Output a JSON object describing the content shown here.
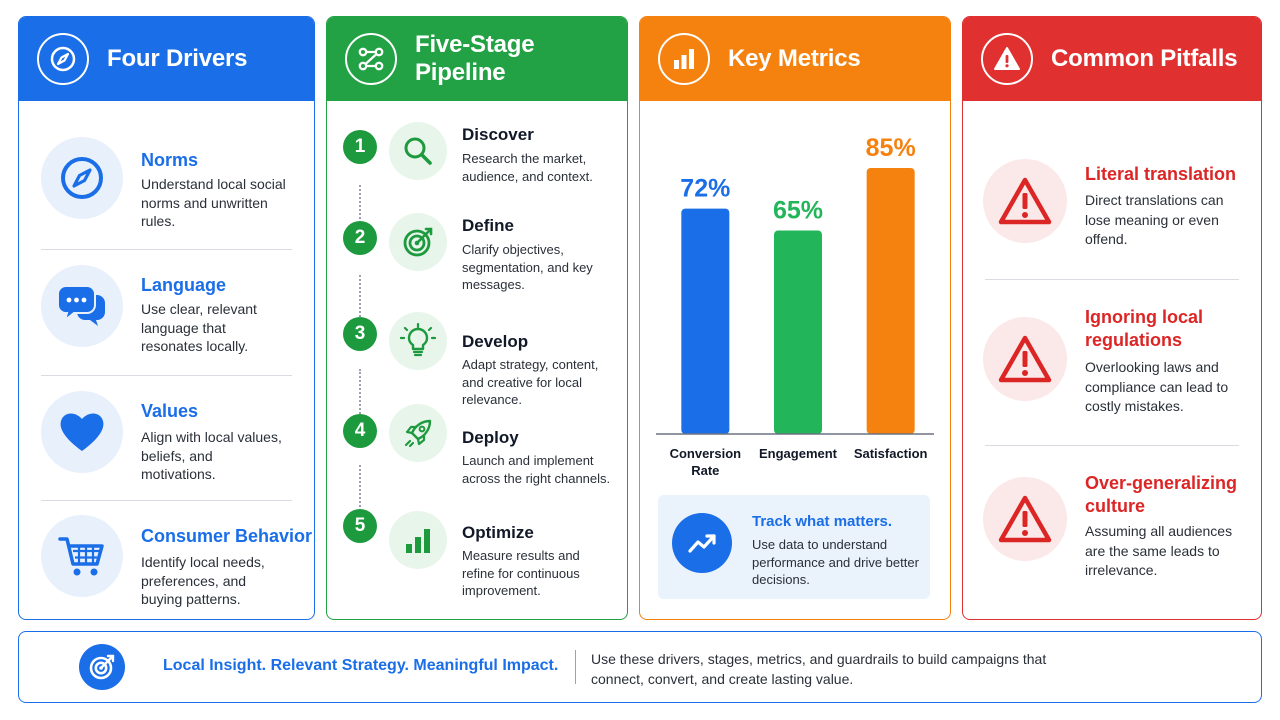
{
  "colors": {
    "blue": "#1a6ee8",
    "green": "#22a244",
    "orange": "#f5810f",
    "red": "#e0302f"
  },
  "drivers": {
    "title": "Four Drivers",
    "header_icon": "compass-icon",
    "items": [
      {
        "title": "Norms",
        "desc": "Understand local social norms and unwritten rules.",
        "icon": "compass-icon"
      },
      {
        "title": "Language",
        "desc": "Use clear, relevant language that resonates locally.",
        "icon": "chat-bubbles-icon"
      },
      {
        "title": "Values",
        "desc": "Align with local values, beliefs, and motivations.",
        "icon": "heart-icon"
      },
      {
        "title": "Consumer Behavior",
        "desc": "Identify local needs, preferences, and buying patterns.",
        "icon": "shopping-cart-icon"
      }
    ]
  },
  "pipeline": {
    "title": "Five-Stage Pipeline",
    "header_icon": "pipeline-flow-icon",
    "stages": [
      {
        "num": "1",
        "title": "Discover",
        "desc": "Research the market, audience, and context.",
        "icon": "magnifier-icon"
      },
      {
        "num": "2",
        "title": "Define",
        "desc": "Clarify objectives, segmentation, and key messages.",
        "icon": "target-icon"
      },
      {
        "num": "3",
        "title": "Develop",
        "desc": "Adapt strategy, content, and creative for local relevance.",
        "icon": "lightbulb-icon"
      },
      {
        "num": "4",
        "title": "Deploy",
        "desc": "Launch and implement across the right channels.",
        "icon": "rocket-icon"
      },
      {
        "num": "5",
        "title": "Optimize",
        "desc": "Measure results and refine for continuous improvement.",
        "icon": "bar-chart-icon"
      }
    ]
  },
  "metrics": {
    "title": "Key Metrics",
    "header_icon": "bar-chart-icon",
    "track_title": "Track what matters.",
    "track_desc": "Use data to understand performance and drive better decisions.",
    "track_icon": "trend-up-icon"
  },
  "chart_data": {
    "type": "bar",
    "categories": [
      "Conversion Rate",
      "Engagement",
      "Satisfaction"
    ],
    "values": [
      72,
      65,
      85
    ],
    "data_labels": [
      "72%",
      "65%",
      "85%"
    ],
    "colors": [
      "#1a6ee8",
      "#22b55a",
      "#f5810f"
    ],
    "title": "",
    "xlabel": "",
    "ylabel": "",
    "ylim": [
      0,
      100
    ],
    "grid": false
  },
  "pitfalls": {
    "title": "Common Pitfalls",
    "header_icon": "warning-icon",
    "items": [
      {
        "title": "Literal translation",
        "desc": "Direct translations can lose meaning or even offend.",
        "icon": "warning-icon"
      },
      {
        "title": "Ignoring local regulations",
        "desc": "Overlooking laws and compliance can lead to costly mistakes.",
        "icon": "warning-icon"
      },
      {
        "title": "Over-generalizing culture",
        "desc": "Assuming all audiences are the same leads to irrelevance.",
        "icon": "warning-icon"
      }
    ]
  },
  "footer": {
    "tagline": "Local Insight. Relevant Strategy. Meaningful Impact.",
    "desc": "Use these drivers, stages, metrics, and guardrails to build campaigns that connect, convert, and create lasting value.",
    "icon": "target-icon"
  }
}
